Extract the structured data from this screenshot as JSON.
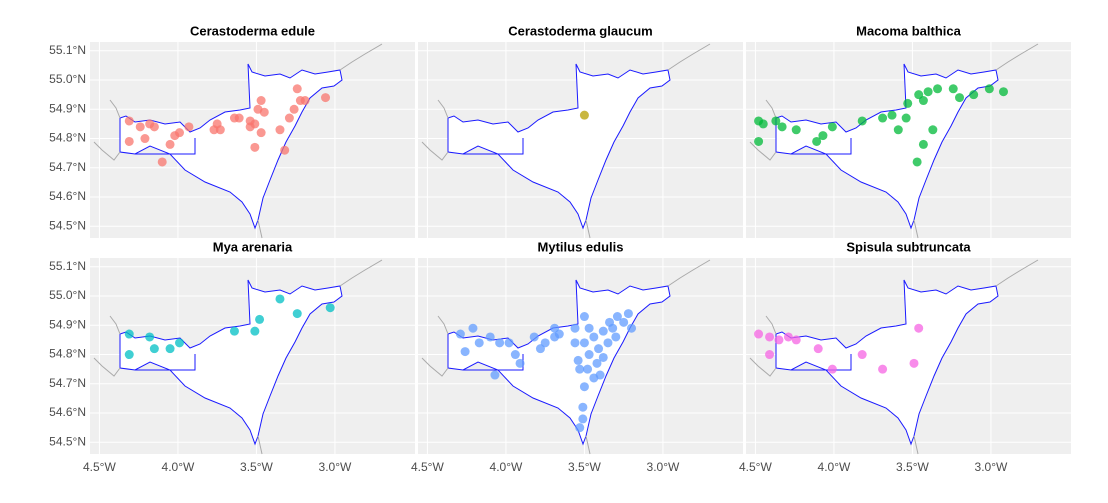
{
  "chart_data": [
    {
      "type": "scatter",
      "title": "Cerastoderma edule",
      "color": "#F8766D",
      "xlim": [
        -4.56,
        -2.49
      ],
      "ylim": [
        54.46,
        55.13
      ],
      "yticks": [
        {
          "value": 54.5,
          "label": "54.5°N"
        },
        {
          "value": 54.6,
          "label": "54.6°N"
        },
        {
          "value": 54.7,
          "label": "54.7°N"
        },
        {
          "value": 54.8,
          "label": "54.8°N"
        },
        {
          "value": 54.9,
          "label": "54.9°N"
        },
        {
          "value": 55.0,
          "label": "55.0°N"
        },
        {
          "value": 55.1,
          "label": "55.1°N"
        }
      ],
      "x": [
        -4.31,
        -4.24,
        -4.18,
        -4.15,
        -4.31,
        -4.21,
        -4.1,
        -4.05,
        -4.02,
        -3.99,
        -3.93,
        -3.77,
        -3.75,
        -3.64,
        -3.61,
        -3.54,
        -3.51,
        -3.49,
        -3.47,
        -3.45,
        -3.47,
        -3.51,
        -3.54,
        -3.35,
        -3.29,
        -3.26,
        -3.22,
        -3.24,
        -3.19,
        -3.06,
        -3.32,
        -3.73
      ],
      "y": [
        54.86,
        54.84,
        54.85,
        54.84,
        54.79,
        54.8,
        54.72,
        54.78,
        54.81,
        54.82,
        54.84,
        54.83,
        54.85,
        54.87,
        54.87,
        54.86,
        54.85,
        54.9,
        54.93,
        54.89,
        54.82,
        54.77,
        54.84,
        54.83,
        54.87,
        54.9,
        54.93,
        54.97,
        54.93,
        54.94,
        54.76,
        54.83
      ]
    },
    {
      "type": "scatter",
      "title": "Cerastoderma glaucum",
      "color": "#B79F00",
      "xlim": [
        -4.56,
        -2.49
      ],
      "ylim": [
        54.46,
        55.13
      ],
      "x": [
        -3.5
      ],
      "y": [
        54.88
      ]
    },
    {
      "type": "scatter",
      "title": "Macoma balthica",
      "color": "#00BA38",
      "xlim": [
        -4.56,
        -2.49
      ],
      "ylim": [
        54.46,
        55.13
      ],
      "x": [
        -4.48,
        -4.45,
        -4.37,
        -4.33,
        -4.24,
        -4.48,
        -4.11,
        -4.07,
        -4.01,
        -3.82,
        -3.69,
        -3.63,
        -3.54,
        -3.53,
        -3.46,
        -3.43,
        -3.4,
        -3.34,
        -3.24,
        -3.2,
        -3.11,
        -3.01,
        -2.92,
        -3.37,
        -3.43,
        -3.47,
        -3.59
      ],
      "y": [
        54.86,
        54.85,
        54.86,
        54.84,
        54.83,
        54.79,
        54.79,
        54.81,
        54.84,
        54.86,
        54.87,
        54.88,
        54.87,
        54.92,
        54.95,
        54.93,
        54.96,
        54.97,
        54.97,
        54.94,
        54.95,
        54.97,
        54.96,
        54.83,
        54.78,
        54.72,
        54.83
      ]
    },
    {
      "type": "scatter",
      "title": "Mya arenaria",
      "color": "#00BFC4",
      "xlim": [
        -4.56,
        -2.49
      ],
      "ylim": [
        54.46,
        55.13
      ],
      "xticks": [
        {
          "value": -4.5,
          "label": "4.5°W"
        },
        {
          "value": -4.0,
          "label": "4.0°W"
        },
        {
          "value": -3.5,
          "label": "3.5°W"
        },
        {
          "value": -3.0,
          "label": "3.0°W"
        }
      ],
      "yticks": [
        {
          "value": 54.5,
          "label": "54.5°N"
        },
        {
          "value": 54.6,
          "label": "54.6°N"
        },
        {
          "value": 54.7,
          "label": "54.7°N"
        },
        {
          "value": 54.8,
          "label": "54.8°N"
        },
        {
          "value": 54.9,
          "label": "54.9°N"
        },
        {
          "value": 55.0,
          "label": "55.0°N"
        },
        {
          "value": 55.1,
          "label": "55.1°N"
        }
      ],
      "x": [
        -4.31,
        -4.31,
        -4.18,
        -4.15,
        -4.05,
        -3.99,
        -3.64,
        -3.51,
        -3.48,
        -3.35,
        -3.24,
        -3.03
      ],
      "y": [
        54.87,
        54.8,
        54.86,
        54.82,
        54.82,
        54.84,
        54.88,
        54.88,
        54.92,
        54.99,
        54.94,
        54.96
      ]
    },
    {
      "type": "scatter",
      "title": "Mytilus edulis",
      "color": "#619CFF",
      "xlim": [
        -4.56,
        -2.49
      ],
      "ylim": [
        54.46,
        55.13
      ],
      "xticks": [
        {
          "value": -4.5,
          "label": "4.5°W"
        },
        {
          "value": -4.0,
          "label": "4.0°W"
        },
        {
          "value": -3.5,
          "label": "3.5°W"
        },
        {
          "value": -3.0,
          "label": "3.0°W"
        }
      ],
      "x": [
        -4.29,
        -4.21,
        -4.1,
        -4.26,
        -4.17,
        -4.04,
        -4.07,
        -3.94,
        -3.91,
        -3.78,
        -3.75,
        -3.69,
        -3.66,
        -3.56,
        -3.56,
        -3.54,
        -3.53,
        -3.5,
        -3.5,
        -3.47,
        -3.47,
        -3.44,
        -3.42,
        -3.41,
        -3.4,
        -3.38,
        -3.38,
        -3.35,
        -3.34,
        -3.32,
        -3.3,
        -3.29,
        -3.25,
        -3.22,
        -3.2,
        -3.5,
        -3.51,
        -3.51,
        -3.53,
        -3.69,
        -3.82,
        -3.98,
        -3.48,
        -3.44
      ],
      "y": [
        54.87,
        54.89,
        54.86,
        54.81,
        54.84,
        54.84,
        54.73,
        54.8,
        54.77,
        54.82,
        54.84,
        54.86,
        54.87,
        54.89,
        54.84,
        54.78,
        54.75,
        54.93,
        54.84,
        54.89,
        54.8,
        54.86,
        54.77,
        54.82,
        54.73,
        54.88,
        54.79,
        54.84,
        54.91,
        54.89,
        54.86,
        54.93,
        54.91,
        54.94,
        54.89,
        54.69,
        54.62,
        54.58,
        54.55,
        54.89,
        54.86,
        54.84,
        54.75,
        54.72
      ]
    },
    {
      "type": "scatter",
      "title": "Spisula subtruncata",
      "color": "#F564E3",
      "xlim": [
        -4.56,
        -2.49
      ],
      "ylim": [
        54.46,
        55.13
      ],
      "xticks": [
        {
          "value": -4.5,
          "label": "4.5°W"
        },
        {
          "value": -4.0,
          "label": "4.0°W"
        },
        {
          "value": -3.5,
          "label": "3.5°W"
        },
        {
          "value": -3.0,
          "label": "3.0°W"
        }
      ],
      "x": [
        -4.48,
        -4.41,
        -4.35,
        -4.29,
        -4.24,
        -4.41,
        -4.1,
        -4.01,
        -3.82,
        -3.69,
        -3.49,
        -3.46
      ],
      "y": [
        54.87,
        54.86,
        54.85,
        54.86,
        54.85,
        54.8,
        54.82,
        54.75,
        54.8,
        54.75,
        54.77,
        54.89
      ]
    }
  ]
}
